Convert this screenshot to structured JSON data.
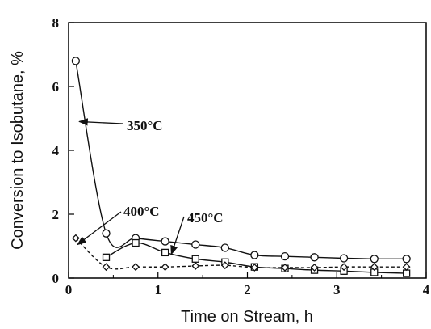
{
  "chart_data": {
    "type": "line",
    "xlabel": "Time on Stream, h",
    "ylabel": "Conversion to Isobutane, %",
    "xlim": [
      0,
      4
    ],
    "ylim": [
      0,
      8
    ],
    "x_ticks": [
      "0",
      "1",
      "2",
      "3",
      "4"
    ],
    "y_ticks": [
      "0",
      "2",
      "4",
      "6",
      "8"
    ],
    "grid": false,
    "series": [
      {
        "name": "350°C",
        "marker": "circle",
        "x": [
          0.08,
          0.42,
          0.75,
          1.08,
          1.42,
          1.75,
          2.08,
          2.42,
          2.75,
          3.08,
          3.42,
          3.78
        ],
        "y": [
          6.8,
          1.4,
          1.25,
          1.15,
          1.05,
          0.95,
          0.72,
          0.68,
          0.65,
          0.62,
          0.6,
          0.6
        ]
      },
      {
        "name": "450°C",
        "marker": "square",
        "x": [
          0.42,
          0.75,
          1.08,
          1.42,
          1.75,
          2.08,
          2.42,
          2.75,
          3.08,
          3.42,
          3.78
        ],
        "y": [
          0.65,
          1.1,
          0.8,
          0.6,
          0.5,
          0.35,
          0.3,
          0.25,
          0.22,
          0.18,
          0.15
        ]
      },
      {
        "name": "400°C",
        "marker": "diamond",
        "x": [
          0.08,
          0.42,
          0.75,
          1.08,
          1.42,
          1.75,
          2.08,
          2.42,
          2.75,
          3.08,
          3.42,
          3.78
        ],
        "y": [
          1.25,
          0.35,
          0.35,
          0.35,
          0.38,
          0.4,
          0.33,
          0.33,
          0.33,
          0.35,
          0.35,
          0.35
        ]
      }
    ],
    "annotations": [
      {
        "text": "350°C",
        "target_series": 0,
        "target_x": 0.12,
        "target_y": 4.9
      },
      {
        "text": "400°C",
        "target_series": 2,
        "target_x": 0.1,
        "target_y": 1.05
      },
      {
        "text": "450°C",
        "target_series": 1,
        "target_x": 1.15,
        "target_y": 0.75
      }
    ]
  }
}
